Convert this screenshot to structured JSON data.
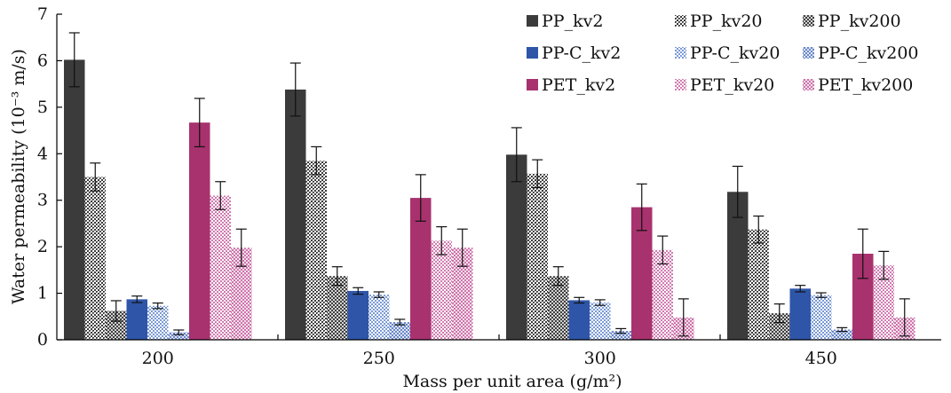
{
  "chart_data": {
    "type": "bar",
    "xlabel": "Mass per unit area (g/m²)",
    "ylabel": "Water permeability (10⁻³ m/s)",
    "ylim": [
      0,
      7
    ],
    "yticks": [
      "0",
      "1",
      "2",
      "3",
      "4",
      "5",
      "6",
      "7"
    ],
    "categories": [
      "200",
      "250",
      "300",
      "450"
    ],
    "legend_position": "top-right",
    "series": [
      {
        "name": "PP_kv2",
        "color": "#3b3b3b",
        "pattern": "solid",
        "values": [
          6.02,
          5.38,
          3.98,
          3.18
        ],
        "errors": [
          0.58,
          0.57,
          0.58,
          0.55
        ]
      },
      {
        "name": "PP_kv20",
        "color": "#3b3b3b",
        "pattern": "medium",
        "values": [
          3.5,
          3.85,
          3.57,
          2.37
        ],
        "errors": [
          0.3,
          0.3,
          0.3,
          0.29
        ]
      },
      {
        "name": "PP_kv200",
        "color": "#3b3b3b",
        "pattern": "light",
        "values": [
          0.62,
          1.37,
          1.37,
          0.57
        ],
        "errors": [
          0.22,
          0.2,
          0.2,
          0.2
        ]
      },
      {
        "name": "PP-C_kv2",
        "color": "#2e55a8",
        "pattern": "solid",
        "values": [
          0.87,
          1.05,
          0.85,
          1.1
        ],
        "errors": [
          0.07,
          0.07,
          0.06,
          0.07
        ]
      },
      {
        "name": "PP-C_kv20",
        "color": "#2e55a8",
        "pattern": "medium",
        "values": [
          0.73,
          0.97,
          0.8,
          0.96
        ],
        "errors": [
          0.06,
          0.06,
          0.06,
          0.05
        ]
      },
      {
        "name": "PP-C_kv200",
        "color": "#2e55a8",
        "pattern": "light",
        "values": [
          0.16,
          0.38,
          0.19,
          0.22
        ],
        "errors": [
          0.05,
          0.06,
          0.05,
          0.04
        ]
      },
      {
        "name": "PET_kv2",
        "color": "#a8326e",
        "pattern": "solid",
        "values": [
          4.67,
          3.05,
          2.85,
          1.85
        ],
        "errors": [
          0.52,
          0.5,
          0.5,
          0.53
        ]
      },
      {
        "name": "PET_kv20",
        "color": "#c4589a",
        "pattern": "medium",
        "values": [
          3.1,
          2.13,
          1.93,
          1.6
        ],
        "errors": [
          0.3,
          0.3,
          0.3,
          0.3
        ]
      },
      {
        "name": "PET_kv200",
        "color": "#c4589a",
        "pattern": "light",
        "values": [
          1.98,
          1.98,
          0.48,
          0.48
        ],
        "errors": [
          0.4,
          0.4,
          0.4,
          0.4
        ]
      }
    ]
  }
}
